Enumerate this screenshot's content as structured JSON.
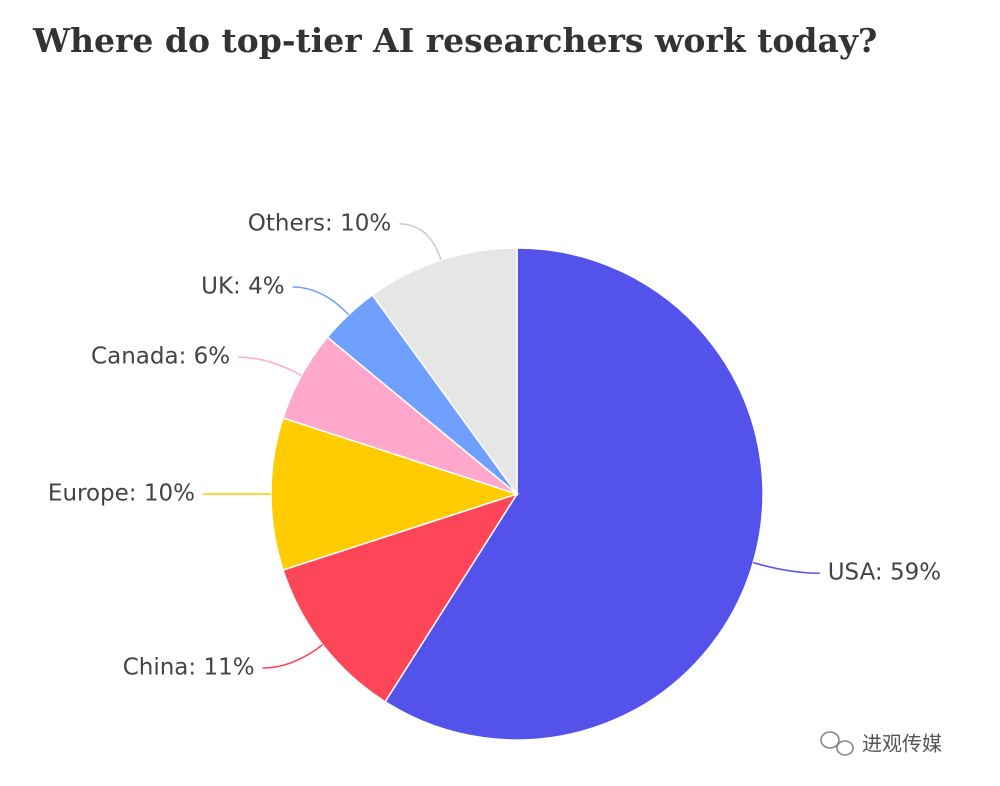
{
  "chart_data": {
    "type": "pie",
    "title": "Where do top-tier AI researchers work today?",
    "values": [
      59,
      11,
      10,
      6,
      4,
      10
    ],
    "value_labels": [
      "USA: 59%",
      "China: 11%",
      "Europe: 10%",
      "Canada: 6%",
      "UK: 4%",
      "Others: 10%"
    ],
    "colors": [
      "#5353ec",
      "#ff4558",
      "#ffcc00",
      "#ffa8cc",
      "#6fa0ff",
      "#e6e6e6"
    ]
  },
  "watermark": "进观传媒"
}
